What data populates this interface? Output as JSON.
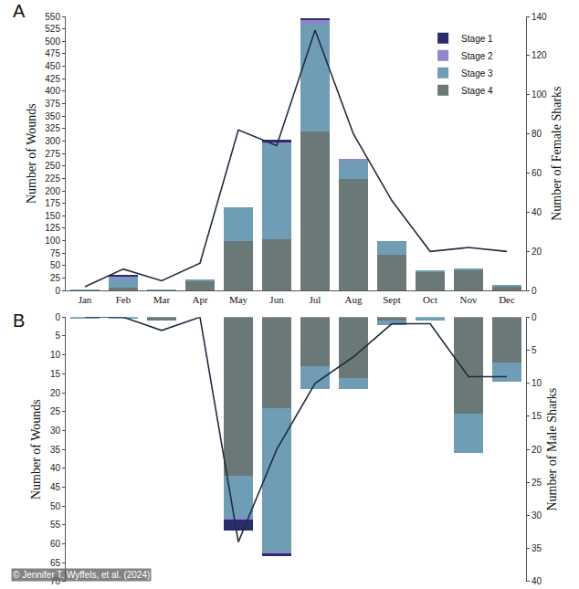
{
  "chart_data": [
    {
      "type": "bar",
      "title": "A",
      "stacked": true,
      "legend": "top-right",
      "grid": false,
      "categories": [
        "Jan",
        "Feb",
        "Mar",
        "Apr",
        "May",
        "Jun",
        "Jul",
        "Aug",
        "Sept",
        "Oct",
        "Nov",
        "Dec"
      ],
      "ylabel": "Number of Wounds",
      "y2label": "Number of Female Sharks",
      "ylim": [
        0,
        550
      ],
      "yticks": [
        0,
        25,
        50,
        75,
        100,
        125,
        150,
        175,
        200,
        225,
        250,
        275,
        300,
        325,
        350,
        375,
        400,
        425,
        450,
        475,
        500,
        525,
        550
      ],
      "y2lim": [
        0,
        140
      ],
      "y2ticks": [
        0,
        20,
        40,
        60,
        80,
        100,
        120,
        140
      ],
      "series": [
        {
          "name": "Stage 1",
          "color": "#2b2d6b",
          "type": "bar",
          "values": [
            0,
            2,
            0,
            0,
            0,
            5,
            5,
            0,
            0,
            0,
            0,
            0
          ]
        },
        {
          "name": "Stage 2",
          "color": "#8f86cf",
          "type": "bar",
          "values": [
            0,
            3,
            0,
            0,
            0,
            5,
            7,
            2,
            0,
            0,
            0,
            0
          ]
        },
        {
          "name": "Stage 3",
          "color": "#6f9db5",
          "type": "bar",
          "values": [
            2,
            20,
            1,
            5,
            67,
            190,
            215,
            38,
            27,
            4,
            4,
            4
          ]
        },
        {
          "name": "Stage 4",
          "color": "#6b7878",
          "type": "bar",
          "values": [
            0,
            5,
            0,
            18,
            100,
            103,
            320,
            223,
            72,
            37,
            40,
            8
          ]
        },
        {
          "name": "Number of Female Sharks",
          "color": "#1f2d40",
          "type": "line",
          "axis": "y2",
          "values": [
            2,
            11,
            5,
            14,
            82,
            74,
            133,
            80,
            46,
            20,
            22,
            20
          ]
        }
      ]
    },
    {
      "type": "bar",
      "title": "B",
      "stacked": true,
      "grid": false,
      "tick_labels": "y",
      "categories": [
        "Jan",
        "Feb",
        "Mar",
        "Apr",
        "May",
        "Jun",
        "Jul",
        "Aug",
        "Sept",
        "Oct",
        "Nov",
        "Dec"
      ],
      "ylabel": "Number of Wounds",
      "y2label": "Number of Male Sharks",
      "ylim": [
        70,
        0
      ],
      "yticks": [
        0,
        5,
        10,
        15,
        20,
        25,
        30,
        35,
        40,
        45,
        50,
        55,
        60,
        65,
        70
      ],
      "y2lim": [
        40,
        0
      ],
      "y2ticks": [
        0,
        5,
        10,
        15,
        20,
        25,
        30,
        35,
        40
      ],
      "annotations": [
        "© Jennifer T. Wyffels, et al. (2024)"
      ],
      "series": [
        {
          "name": "Stage 1",
          "color": "#2b2d6b",
          "type": "bar",
          "values": [
            0,
            0,
            0,
            0,
            3,
            0.8,
            0,
            0,
            0,
            0,
            0,
            0
          ]
        },
        {
          "name": "Stage 2",
          "color": "#8f86cf",
          "type": "bar",
          "values": [
            0,
            0,
            0,
            0,
            0.5,
            0.5,
            0,
            0,
            0,
            0,
            0,
            0
          ]
        },
        {
          "name": "Stage 3",
          "color": "#6f9db5",
          "type": "bar",
          "values": [
            0.3,
            0.3,
            0,
            0,
            11,
            38,
            6,
            3,
            1,
            1,
            10.5,
            5
          ]
        },
        {
          "name": "Stage 4",
          "color": "#6b7878",
          "type": "bar",
          "values": [
            0,
            0,
            1,
            0,
            42,
            24,
            13,
            16,
            1,
            0,
            25.5,
            12
          ]
        },
        {
          "name": "Number of Male Sharks",
          "color": "#1f2d40",
          "type": "line",
          "axis": "y2",
          "values": [
            0,
            0,
            2,
            0,
            34,
            20,
            10,
            6,
            1,
            1,
            9,
            9
          ]
        }
      ]
    }
  ]
}
